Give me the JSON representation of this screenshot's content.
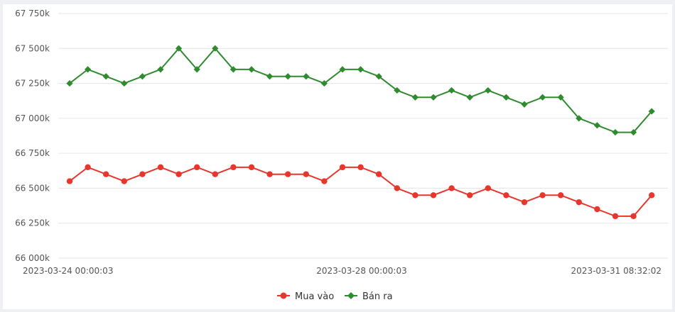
{
  "chart_data": {
    "type": "line",
    "x_labels": [
      "2023-03-24 00:00:03",
      "2023-03-28 00:00:03",
      "2023-03-31 08:32:02"
    ],
    "y_ticks": [
      "67 750k",
      "67 500k",
      "67 250k",
      "67 000k",
      "66 750k",
      "66 500k",
      "66 250k",
      "66 000k"
    ],
    "ylim": [
      66000,
      67750
    ],
    "grid": true,
    "legend_position": "bottom",
    "series": [
      {
        "name": "Mua vào",
        "color": "#e8362d",
        "marker": "circle",
        "values": [
          66550,
          66650,
          66600,
          66550,
          66600,
          66650,
          66600,
          66650,
          66600,
          66650,
          66650,
          66600,
          66600,
          66600,
          66550,
          66650,
          66650,
          66600,
          66500,
          66450,
          66450,
          66500,
          66450,
          66500,
          66450,
          66400,
          66450,
          66450,
          66400,
          66350,
          66300,
          66300,
          66450
        ]
      },
      {
        "name": "Bán ra",
        "color": "#2e8b2e",
        "marker": "diamond",
        "values": [
          67250,
          67350,
          67300,
          67250,
          67300,
          67350,
          67500,
          67350,
          67500,
          67350,
          67350,
          67300,
          67300,
          67300,
          67250,
          67350,
          67350,
          67300,
          67200,
          67150,
          67150,
          67200,
          67150,
          67200,
          67150,
          67100,
          67150,
          67150,
          67000,
          66950,
          66900,
          66900,
          67050
        ]
      }
    ]
  }
}
